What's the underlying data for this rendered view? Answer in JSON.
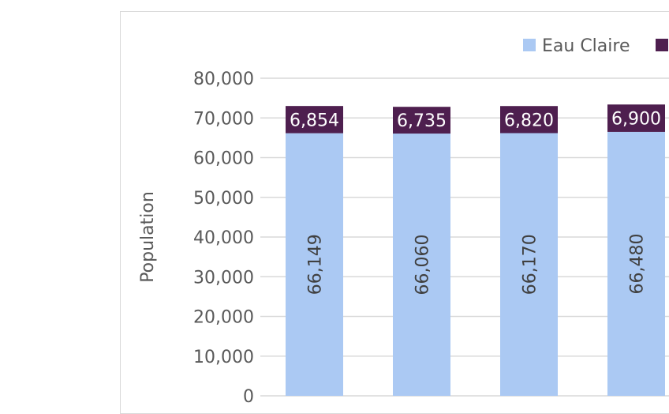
{
  "chart_data": {
    "type": "bar",
    "stacked": true,
    "categories": [
      "",
      "",
      "",
      ""
    ],
    "series": [
      {
        "name": "Eau Claire",
        "values": [
          66149,
          66060,
          66170,
          66480
        ],
        "color": "#abc9f3"
      },
      {
        "name": "",
        "values": [
          6854,
          6735,
          6820,
          6900
        ],
        "color": "#4e1f4f"
      }
    ],
    "ylabel": "Population",
    "ylim": [
      0,
      80000
    ],
    "yticks": [
      "0",
      "10,000",
      "20,000",
      "30,000",
      "40,000",
      "50,000",
      "60,000",
      "70,000",
      "80,000"
    ],
    "data_labels": {
      "series_0": [
        "66,149",
        "66,060",
        "66,170",
        "66,480"
      ],
      "series_1": [
        "6,854",
        "6,735",
        "6,820",
        "6,900"
      ]
    },
    "grid": true,
    "legend_position": "top-right"
  }
}
